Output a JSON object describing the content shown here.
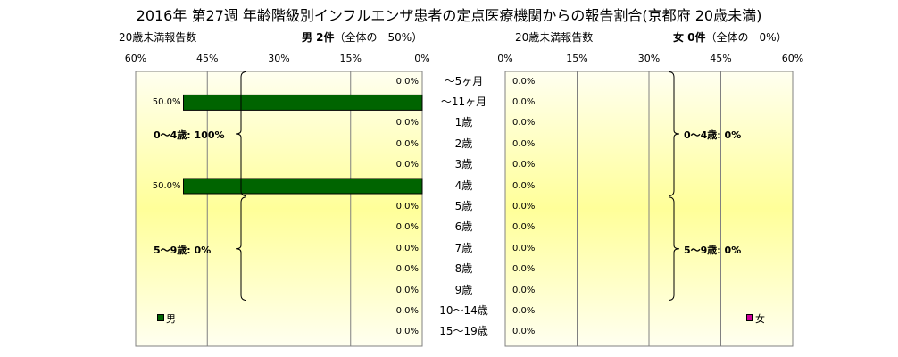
{
  "title": "2016年 第27週 年齢階級別インフルエンザ患者の定点医療機関からの報告割合(京都府 20歳未満)",
  "left_header": {
    "count_label": "20歳未満報告数",
    "summary_main": "男 2件",
    "summary_sub": "（全体の　50%）"
  },
  "right_header": {
    "count_label": "20歳未満報告数",
    "summary_main": "女 0件",
    "summary_sub": "（全体の　0%）"
  },
  "colors": {
    "male": "#006400",
    "female": "#cc0099",
    "plot_top": "#fffff0",
    "plot_mid": "#ffff99",
    "grid": "#808080"
  },
  "chart_data": [
    {
      "type": "bar",
      "orientation": "horizontal",
      "direction": "right-to-left",
      "categories": [
        "〜5ヶ月",
        "〜11ヶ月",
        "1歳",
        "2歳",
        "3歳",
        "4歳",
        "5歳",
        "6歳",
        "7歳",
        "8歳",
        "9歳",
        "10〜14歳",
        "15〜19歳"
      ],
      "series": [
        {
          "name": "男",
          "values": [
            0,
            50,
            0,
            0,
            0,
            50,
            0,
            0,
            0,
            0,
            0,
            0,
            0
          ]
        }
      ],
      "value_labels": [
        "0.0%",
        "50.0%",
        "0.0%",
        "0.0%",
        "0.0%",
        "50.0%",
        "0.0%",
        "0.0%",
        "0.0%",
        "0.0%",
        "0.0%",
        "0.0%",
        "0.0%"
      ],
      "xlim": [
        0,
        60
      ],
      "xticks": [
        "60%",
        "45%",
        "30%",
        "15%",
        "0%"
      ],
      "groups": [
        {
          "label": "0〜4歳: 100%",
          "from": 0,
          "to": 5
        },
        {
          "label": "5〜9歳: 0%",
          "from": 6,
          "to": 10
        }
      ],
      "legend": "bottom-left",
      "grid": true
    },
    {
      "type": "bar",
      "orientation": "horizontal",
      "direction": "left-to-right",
      "categories": [
        "〜5ヶ月",
        "〜11ヶ月",
        "1歳",
        "2歳",
        "3歳",
        "4歳",
        "5歳",
        "6歳",
        "7歳",
        "8歳",
        "9歳",
        "10〜14歳",
        "15〜19歳"
      ],
      "series": [
        {
          "name": "女",
          "values": [
            0,
            0,
            0,
            0,
            0,
            0,
            0,
            0,
            0,
            0,
            0,
            0,
            0
          ]
        }
      ],
      "value_labels": [
        "0.0%",
        "0.0%",
        "0.0%",
        "0.0%",
        "0.0%",
        "0.0%",
        "0.0%",
        "0.0%",
        "0.0%",
        "0.0%",
        "0.0%",
        "0.0%",
        "0.0%"
      ],
      "xlim": [
        0,
        60
      ],
      "xticks": [
        "0%",
        "15%",
        "30%",
        "45%",
        "60%"
      ],
      "groups": [
        {
          "label": "0〜4歳: 0%",
          "from": 0,
          "to": 5
        },
        {
          "label": "5〜9歳: 0%",
          "from": 6,
          "to": 10
        }
      ],
      "legend": "bottom-right",
      "grid": true
    }
  ]
}
